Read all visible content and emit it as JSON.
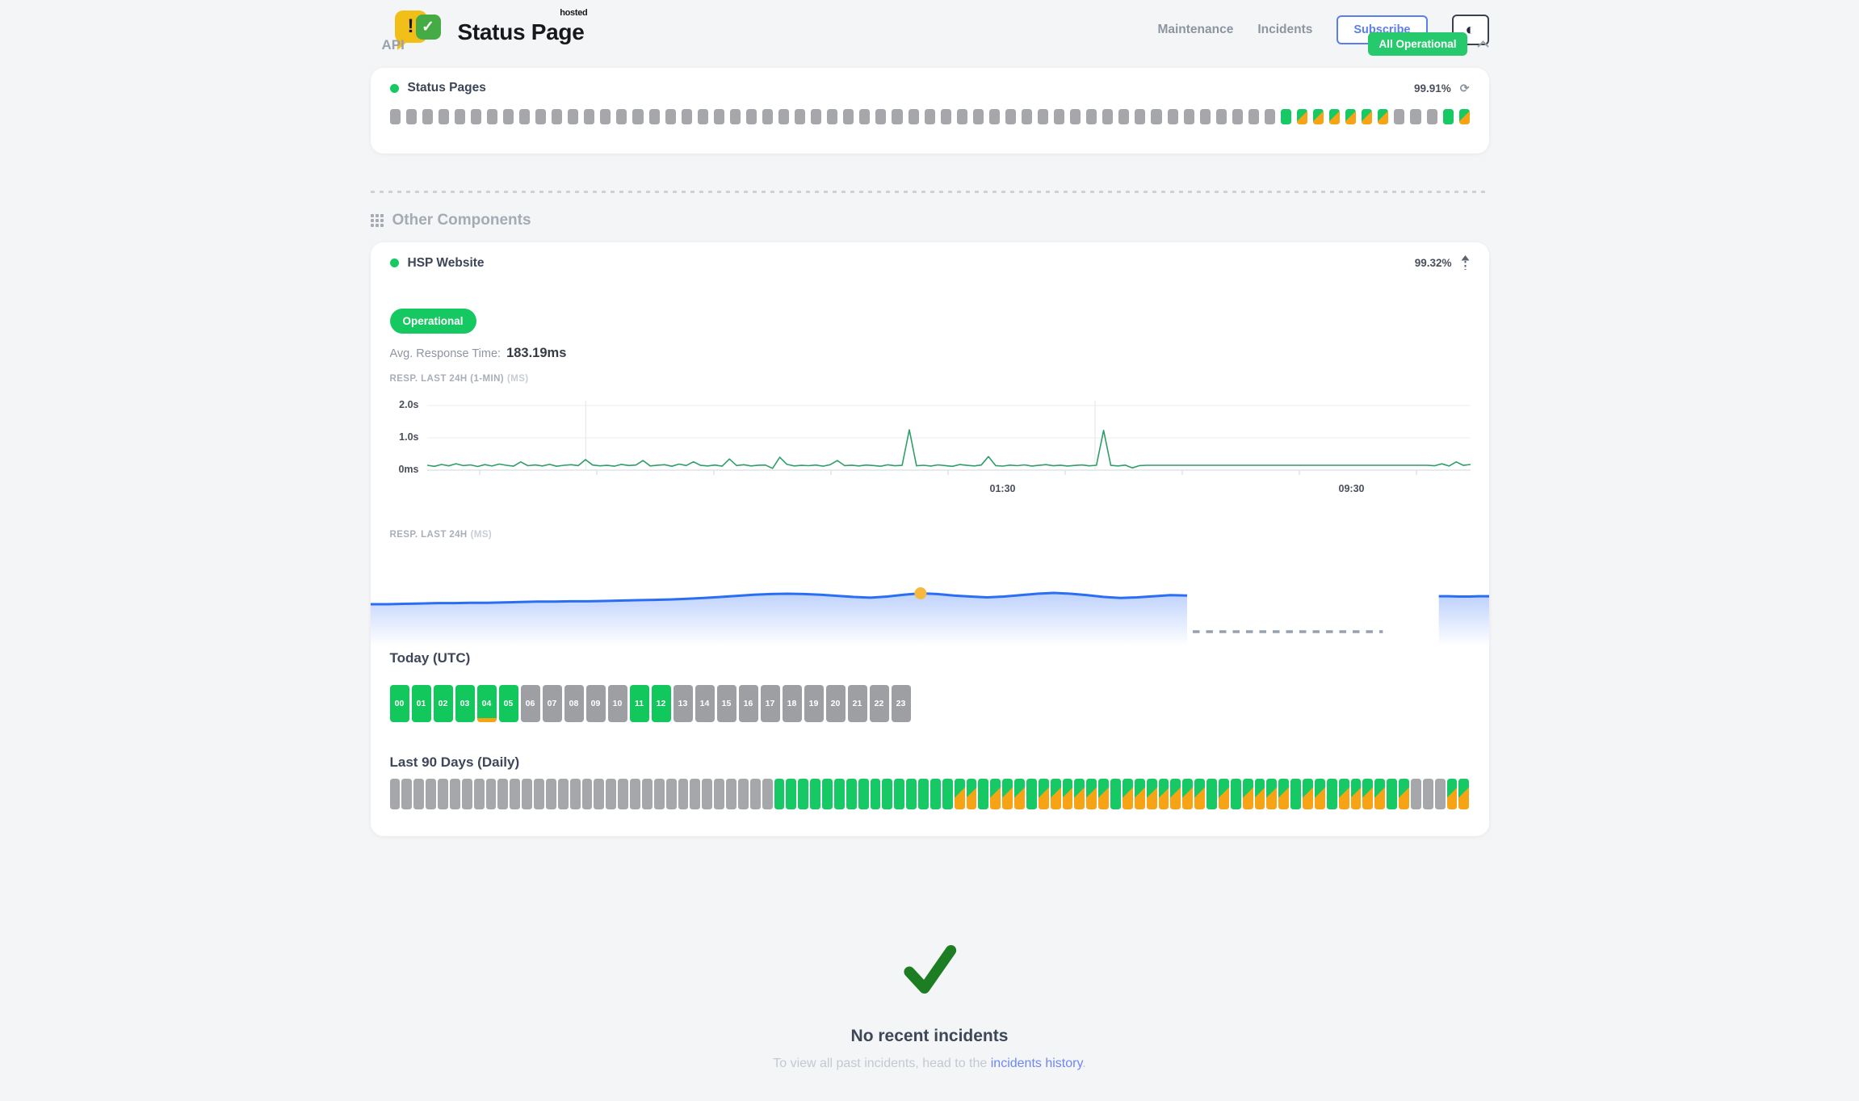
{
  "colors": {
    "green": "#17c964",
    "orange": "#f7a316",
    "grey_bar": "#a6a7aa",
    "blue_accent": "#5a7df2",
    "line_green": "#2f9e68",
    "line_blue": "#2a6ef5",
    "dot_yellow": "#f6b93d",
    "check_green": "#1d7d22",
    "badge_green": "#27c96d"
  },
  "header": {
    "logo_exclaim": "!",
    "logo_check": "✓",
    "logo_title": "Status Page",
    "logo_superscript": "hosted",
    "nav": {
      "maintenance": "Maintenance",
      "incidents": "Incidents",
      "subscribe": "Subscribe",
      "theme_icon": "◐"
    },
    "status_badge": "All Operational"
  },
  "api_section": {
    "title": "API",
    "component": {
      "name": "Status Pages",
      "uptime": "99.91%",
      "refresh_icon": "⟳",
      "bars_pattern": "xxxxxxxxxxxxxxxxxxxxxxxxxxxxxxxxxxxxxxxxxxxxxxxxxxxxxxxgmmmmmmxxxgm"
    }
  },
  "other_components": {
    "title": "Other Components",
    "component": {
      "name": "HSP Website",
      "uptime": "99.32%",
      "status": "Operational",
      "avg_label": "Avg. Response Time:",
      "avg_value": "183.19ms",
      "today_label": "Today (UTC)",
      "last90_label": "Last 90 Days (Daily)",
      "hours": [
        {
          "label": "00",
          "state": "g"
        },
        {
          "label": "01",
          "state": "g"
        },
        {
          "label": "02",
          "state": "g"
        },
        {
          "label": "03",
          "state": "g"
        },
        {
          "label": "04",
          "state": "go"
        },
        {
          "label": "05",
          "state": "g"
        },
        {
          "label": "06",
          "state": "x"
        },
        {
          "label": "07",
          "state": "x"
        },
        {
          "label": "08",
          "state": "x"
        },
        {
          "label": "09",
          "state": "x"
        },
        {
          "label": "10",
          "state": "x"
        },
        {
          "label": "11",
          "state": "g"
        },
        {
          "label": "12",
          "state": "g"
        },
        {
          "label": "13",
          "state": "x"
        },
        {
          "label": "14",
          "state": "x"
        },
        {
          "label": "15",
          "state": "x"
        },
        {
          "label": "16",
          "state": "x"
        },
        {
          "label": "17",
          "state": "x"
        },
        {
          "label": "18",
          "state": "x"
        },
        {
          "label": "19",
          "state": "x"
        },
        {
          "label": "20",
          "state": "x"
        },
        {
          "label": "21",
          "state": "x"
        },
        {
          "label": "22",
          "state": "x"
        },
        {
          "label": "23",
          "state": "x"
        }
      ],
      "last90_pattern": "xxxxxxxxxxxxxxxxxxxxxxxxxxxxxxxxgggggggggggggggmmgmmmgmmmmmmgmmmmmmmgmgmmmmgmmgmmmmgmxxxmm"
    }
  },
  "chart_data": [
    {
      "id": "resp_last_24h_1min",
      "type": "line",
      "title": "RESP. LAST 24H (1-MIN)",
      "unit": "(MS)",
      "ylim": [
        0,
        2000
      ],
      "y_tick_labels": [
        "2.0s",
        "1.0s",
        "0ms"
      ],
      "x_tick_labels": [
        {
          "label": "01:30",
          "pos": 0.553
        },
        {
          "label": "09:30",
          "pos": 0.888
        }
      ],
      "gridlines_x": [
        0.152,
        0.64
      ],
      "grid": true,
      "series": [
        {
          "name": "response_ms",
          "color": "#2f9e68",
          "values": [
            150,
            118,
            175,
            132,
            198,
            140,
            162,
            112,
            170,
            128,
            188,
            150,
            122,
            255,
            138,
            160,
            130,
            178,
            120,
            150,
            168,
            140,
            325,
            158,
            132,
            148,
            122,
            178,
            142,
            158,
            298,
            130,
            152,
            168,
            120,
            188,
            142,
            258,
            148,
            130,
            158,
            122,
            345,
            142,
            168,
            130,
            152,
            158,
            55,
            398,
            178,
            130,
            148,
            138,
            158,
            122,
            168,
            298,
            140,
            152,
            130,
            158,
            142,
            120,
            165,
            135,
            148,
            1250,
            135,
            150,
            128,
            162,
            140,
            118,
            172,
            148,
            130,
            158,
            420,
            140,
            125,
            155,
            138,
            162,
            128,
            148,
            170,
            135,
            152,
            128,
            145,
            160,
            132,
            150,
            1230,
            148,
            130,
            155,
            70,
            140,
            150,
            150,
            150,
            150,
            150,
            150,
            150,
            150,
            150,
            150,
            150,
            150,
            150,
            150,
            150,
            150,
            150,
            150,
            150,
            150,
            150,
            150,
            150,
            150,
            150,
            150,
            150,
            150,
            150,
            150,
            150,
            150,
            150,
            150,
            150,
            150,
            150,
            150,
            150,
            150,
            135,
            195,
            128,
            255,
            148,
            175
          ]
        }
      ]
    },
    {
      "id": "resp_last_24h",
      "type": "area",
      "title": "RESP. LAST 24H",
      "unit": "(MS)",
      "line_color": "#2a6ef5",
      "segments": [
        {
          "x_range": [
            0,
            0.73
          ],
          "values": [
            200,
            200,
            201,
            202,
            203,
            203,
            204,
            204,
            205,
            206,
            207,
            207,
            208,
            208,
            209,
            210,
            211,
            212,
            213,
            215,
            217,
            220,
            223,
            226,
            228,
            229,
            228,
            226,
            223,
            220,
            218,
            221,
            226,
            230,
            228,
            224,
            221,
            219,
            221,
            225,
            229,
            231,
            229,
            225,
            220,
            217,
            219,
            222,
            225,
            224
          ]
        },
        {
          "x_range": [
            0.955,
            1.0
          ],
          "values": [
            222,
            222,
            221,
            221,
            222,
            222
          ]
        }
      ],
      "marker": {
        "segment": 0,
        "index": 33,
        "color": "#f6b93d"
      },
      "gap_dash": {
        "x_range": [
          0.735,
          0.905
        ]
      }
    },
    {
      "id": "status_pages_uptime_strip",
      "type": "status-strip",
      "component": "Status Pages",
      "pattern": "xxxxxxxxxxxxxxxxxxxxxxxxxxxxxxxxxxxxxxxxxxxxxxxxxxxxxxxgmmmmmmxxxgm",
      "legend": {
        "x": "no-data",
        "g": "operational",
        "m": "partial-degraded"
      }
    },
    {
      "id": "hsp_last90_strip",
      "type": "status-strip",
      "component": "HSP Website",
      "pattern": "xxxxxxxxxxxxxxxxxxxxxxxxxxxxxxxxgggggggggggggggmmgmmmgmmmmmmgmmmmmmmgmgmmmmgmmgmmmmgmxxxmm",
      "legend": {
        "x": "no-data",
        "g": "operational",
        "m": "partial-degraded"
      }
    }
  ],
  "footer": {
    "title": "No recent incidents",
    "subtitle_prefix": "To view all past incidents, head to the ",
    "link_text": "incidents history",
    "subtitle_suffix": "."
  }
}
